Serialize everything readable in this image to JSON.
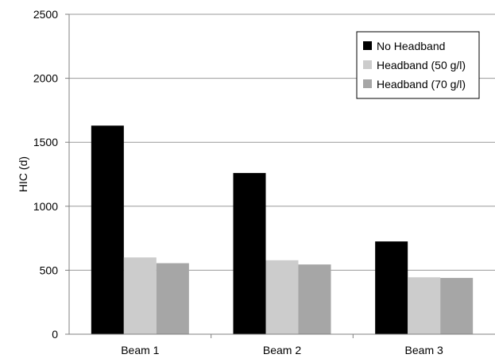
{
  "chart_data": {
    "type": "bar",
    "title": "",
    "xlabel": "",
    "ylabel": "HIC (d)",
    "ylim": [
      0,
      2500
    ],
    "yticks": [
      0,
      500,
      1000,
      1500,
      2000,
      2500
    ],
    "grid": true,
    "legend_position": "top-right",
    "categories": [
      "Beam 1",
      "Beam 2",
      "Beam 3"
    ],
    "series": [
      {
        "name": "No Headband",
        "color": "#000000",
        "values": [
          1630,
          1260,
          725
        ]
      },
      {
        "name": "Headband (50 g/l)",
        "color": "#cccccc",
        "values": [
          600,
          578,
          445
        ]
      },
      {
        "name": "Headband (70 g/l)",
        "color": "#a6a6a6",
        "values": [
          555,
          545,
          440
        ]
      }
    ]
  }
}
